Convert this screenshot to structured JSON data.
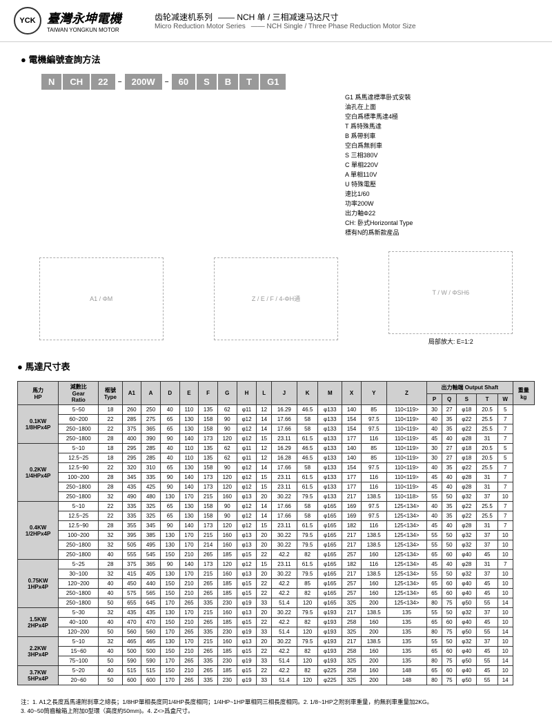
{
  "header": {
    "logo_text": "YCK",
    "company_zh": "臺灣永坤電機",
    "company_en": "TAIWAN YONGKUN MOTOR",
    "series_zh": "齿轮减速机系列",
    "series_sub_zh": "—— NCH 单 / 三相减速马达尺寸",
    "series_en": "Micro Reduction Motor Series",
    "series_sub_en": "—— NCH Single / Three Phase Reduction Motor Size"
  },
  "section1_title": "● 電機編號查詢方法",
  "model_code": [
    "N",
    "CH",
    "22",
    "–",
    "200W",
    "–",
    "60",
    "S",
    "B",
    "T",
    "G1"
  ],
  "decode": [
    "G1 爲馬達標準卧式安裝",
    "油孔在上面",
    "空白爲標準馬達4極",
    "T 爲特殊馬達",
    "B 爲帶刹車",
    "空白爲無刹車",
    "S 三相380V",
    "C 單相220V",
    "A 單相110V",
    "U 特殊電壓",
    "速比1/60",
    "功率200W",
    "出力軸Φ22",
    "CH: 卧式Horizontal Type",
    "標有N的爲新款産品"
  ],
  "diagram_caption": "局部放大: E=1:2",
  "section2_title": "● 馬達尺寸表",
  "table": {
    "headers": [
      "馬力\nHP",
      "減數比\nGear\nRatio",
      "框號\nType",
      "A1",
      "A",
      "D",
      "E",
      "F",
      "G",
      "H",
      "L",
      "J",
      "K",
      "M",
      "X",
      "Y",
      "Z"
    ],
    "output_shaft_header": "出力軸端 Output Shaft",
    "output_cols": [
      "P",
      "Q",
      "S",
      "T",
      "W"
    ],
    "weight_header": "重量\nkg",
    "groups": [
      {
        "hp": "0.1KW\n1/8HPx4P",
        "rows": [
          [
            "5~50",
            "18",
            "260",
            "250",
            "40",
            "110",
            "135",
            "62",
            "φ11",
            "12",
            "16.29",
            "46.5",
            "φ133",
            "140",
            "85",
            "110<119>",
            "30",
            "27",
            "φ18",
            "20.5",
            "5"
          ],
          [
            "60~200",
            "22",
            "285",
            "275",
            "65",
            "130",
            "158",
            "90",
            "φ12",
            "14",
            "17.66",
            "58",
            "φ133",
            "154",
            "97.5",
            "110<119>",
            "40",
            "35",
            "φ22",
            "25.5",
            "7"
          ],
          [
            "250~1800",
            "22",
            "375",
            "365",
            "65",
            "130",
            "158",
            "90",
            "φ12",
            "14",
            "17.66",
            "58",
            "φ133",
            "154",
            "97.5",
            "110<119>",
            "40",
            "35",
            "φ22",
            "25.5",
            "7"
          ],
          [
            "250~1800",
            "28",
            "400",
            "390",
            "90",
            "140",
            "173",
            "120",
            "φ12",
            "15",
            "23.11",
            "61.5",
            "φ133",
            "177",
            "116",
            "110<119>",
            "45",
            "40",
            "φ28",
            "31",
            "7"
          ]
        ]
      },
      {
        "hp": "0.2KW\n1/4HPx4P",
        "rows": [
          [
            "5~10",
            "18",
            "295",
            "285",
            "40",
            "110",
            "135",
            "62",
            "φ11",
            "12",
            "16.29",
            "46.5",
            "φ133",
            "140",
            "85",
            "110<119>",
            "30",
            "27",
            "φ18",
            "20.5",
            "5"
          ],
          [
            "12.5~25",
            "18",
            "295",
            "285",
            "40",
            "110",
            "135",
            "62",
            "φ11",
            "12",
            "16.28",
            "46.5",
            "φ133",
            "140",
            "85",
            "110<119>",
            "30",
            "27",
            "φ18",
            "20.5",
            "5"
          ],
          [
            "12.5~90",
            "22",
            "320",
            "310",
            "65",
            "130",
            "158",
            "90",
            "φ12",
            "14",
            "17.66",
            "58",
            "φ133",
            "154",
            "97.5",
            "110<119>",
            "40",
            "35",
            "φ22",
            "25.5",
            "7"
          ],
          [
            "100~200",
            "28",
            "345",
            "335",
            "90",
            "140",
            "173",
            "120",
            "φ12",
            "15",
            "23.11",
            "61.5",
            "φ133",
            "177",
            "116",
            "110<119>",
            "45",
            "40",
            "φ28",
            "31",
            "7"
          ],
          [
            "250~1800",
            "28",
            "435",
            "425",
            "90",
            "140",
            "173",
            "120",
            "φ12",
            "15",
            "23.11",
            "61.5",
            "φ133",
            "177",
            "116",
            "110<119>",
            "45",
            "40",
            "φ28",
            "31",
            "7"
          ],
          [
            "250~1800",
            "32",
            "490",
            "480",
            "130",
            "170",
            "215",
            "160",
            "φ13",
            "20",
            "30.22",
            "79.5",
            "φ133",
            "217",
            "138.5",
            "110<118>",
            "55",
            "50",
            "φ32",
            "37",
            "10"
          ]
        ]
      },
      {
        "hp": "0.4KW\n1/2HPx4P",
        "rows": [
          [
            "5~10",
            "22",
            "335",
            "325",
            "65",
            "130",
            "158",
            "90",
            "φ12",
            "14",
            "17.66",
            "58",
            "φ165",
            "169",
            "97.5",
            "125<134>",
            "40",
            "35",
            "φ22",
            "25.5",
            "7"
          ],
          [
            "12.5~25",
            "22",
            "335",
            "325",
            "65",
            "130",
            "158",
            "90",
            "φ12",
            "14",
            "17.66",
            "58",
            "φ165",
            "169",
            "97.5",
            "125<134>",
            "40",
            "35",
            "φ22",
            "25.5",
            "7"
          ],
          [
            "12.5~90",
            "28",
            "355",
            "345",
            "90",
            "140",
            "173",
            "120",
            "φ12",
            "15",
            "23.11",
            "61.5",
            "φ165",
            "182",
            "116",
            "125<134>",
            "45",
            "40",
            "φ28",
            "31",
            "7"
          ],
          [
            "100~200",
            "32",
            "395",
            "385",
            "130",
            "170",
            "215",
            "160",
            "φ13",
            "20",
            "30.22",
            "79.5",
            "φ165",
            "217",
            "138.5",
            "125<134>",
            "55",
            "50",
            "φ32",
            "37",
            "10"
          ],
          [
            "250~1800",
            "32",
            "505",
            "495",
            "130",
            "170",
            "214",
            "160",
            "φ13",
            "20",
            "30.22",
            "79.5",
            "φ165",
            "217",
            "138.5",
            "125<134>",
            "55",
            "50",
            "φ32",
            "37",
            "10"
          ],
          [
            "250~1800",
            "40",
            "555",
            "545",
            "150",
            "210",
            "265",
            "185",
            "φ15",
            "22",
            "42.2",
            "82",
            "φ165",
            "257",
            "160",
            "125<134>",
            "65",
            "60",
            "φ40",
            "45",
            "10"
          ]
        ]
      },
      {
        "hp": "0.75KW\n1HPx4P",
        "rows": [
          [
            "5~25",
            "28",
            "375",
            "365",
            "90",
            "140",
            "173",
            "120",
            "φ12",
            "15",
            "23.11",
            "61.5",
            "φ165",
            "182",
            "116",
            "125<134>",
            "45",
            "40",
            "φ28",
            "31",
            "7"
          ],
          [
            "30~100",
            "32",
            "415",
            "405",
            "130",
            "170",
            "215",
            "160",
            "φ13",
            "20",
            "30.22",
            "79.5",
            "φ165",
            "217",
            "138.5",
            "125<134>",
            "55",
            "50",
            "φ32",
            "37",
            "10"
          ],
          [
            "120~200",
            "40",
            "450",
            "440",
            "150",
            "210",
            "265",
            "185",
            "φ15",
            "22",
            "42.2",
            "85",
            "φ165",
            "257",
            "160",
            "125<134>",
            "65",
            "60",
            "φ40",
            "45",
            "10"
          ],
          [
            "250~1800",
            "40",
            "575",
            "565",
            "150",
            "210",
            "265",
            "185",
            "φ15",
            "22",
            "42.2",
            "82",
            "φ165",
            "257",
            "160",
            "125<134>",
            "65",
            "60",
            "φ40",
            "45",
            "10"
          ],
          [
            "250~1800",
            "50",
            "655",
            "645",
            "170",
            "265",
            "335",
            "230",
            "φ19",
            "33",
            "51.4",
            "120",
            "φ165",
            "325",
            "200",
            "125<134>",
            "80",
            "75",
            "φ50",
            "55",
            "14"
          ]
        ]
      },
      {
        "hp": "1.5KW\n2HPx4P",
        "rows": [
          [
            "5~30",
            "32",
            "435",
            "435",
            "130",
            "170",
            "215",
            "160",
            "φ13",
            "20",
            "30.22",
            "79.5",
            "φ193",
            "217",
            "138.5",
            "135",
            "55",
            "50",
            "φ32",
            "37",
            "10"
          ],
          [
            "40~100",
            "40",
            "470",
            "470",
            "150",
            "210",
            "265",
            "185",
            "φ15",
            "22",
            "42.2",
            "82",
            "φ193",
            "258",
            "160",
            "135",
            "65",
            "60",
            "φ40",
            "45",
            "10"
          ],
          [
            "120~200",
            "50",
            "560",
            "560",
            "170",
            "265",
            "335",
            "230",
            "φ19",
            "33",
            "51.4",
            "120",
            "φ193",
            "325",
            "200",
            "135",
            "80",
            "75",
            "φ50",
            "55",
            "14"
          ]
        ]
      },
      {
        "hp": "2.2KW\n3HPx4P",
        "rows": [
          [
            "5~10",
            "32",
            "465",
            "465",
            "130",
            "170",
            "215",
            "160",
            "φ13",
            "20",
            "30.22",
            "79.5",
            "φ193",
            "217",
            "138.5",
            "135",
            "55",
            "50",
            "φ32",
            "37",
            "10"
          ],
          [
            "15~60",
            "40",
            "500",
            "500",
            "150",
            "210",
            "265",
            "185",
            "φ15",
            "22",
            "42.2",
            "82",
            "φ193",
            "258",
            "160",
            "135",
            "65",
            "60",
            "φ40",
            "45",
            "10"
          ],
          [
            "75~100",
            "50",
            "590",
            "590",
            "170",
            "265",
            "335",
            "230",
            "φ19",
            "33",
            "51.4",
            "120",
            "φ193",
            "325",
            "200",
            "135",
            "80",
            "75",
            "φ50",
            "55",
            "14"
          ]
        ]
      },
      {
        "hp": "3.7KW\n5HPx4P",
        "rows": [
          [
            "5~20",
            "40",
            "515",
            "515",
            "150",
            "210",
            "265",
            "185",
            "φ15",
            "22",
            "42.2",
            "82",
            "φ225",
            "258",
            "160",
            "148",
            "65",
            "60",
            "φ40",
            "45",
            "10"
          ],
          [
            "20~60",
            "50",
            "600",
            "600",
            "170",
            "265",
            "335",
            "230",
            "φ19",
            "33",
            "51.4",
            "120",
            "φ225",
            "325",
            "200",
            "148",
            "80",
            "75",
            "φ50",
            "55",
            "14"
          ]
        ]
      }
    ]
  },
  "footer_note": "注：1. A1之長度爲馬達附刹車之總長；1/8HP單相長度同1/4HP長度相同；1/4HP~1HP單相同三相長度相同。2. 1/8~1HP之附刹車重量，約無刹車重量加2KG。\n3. 40~50筒齒輪箱上附加0型環（高度約50mm)。4. Z<>爲盒尺寸。"
}
